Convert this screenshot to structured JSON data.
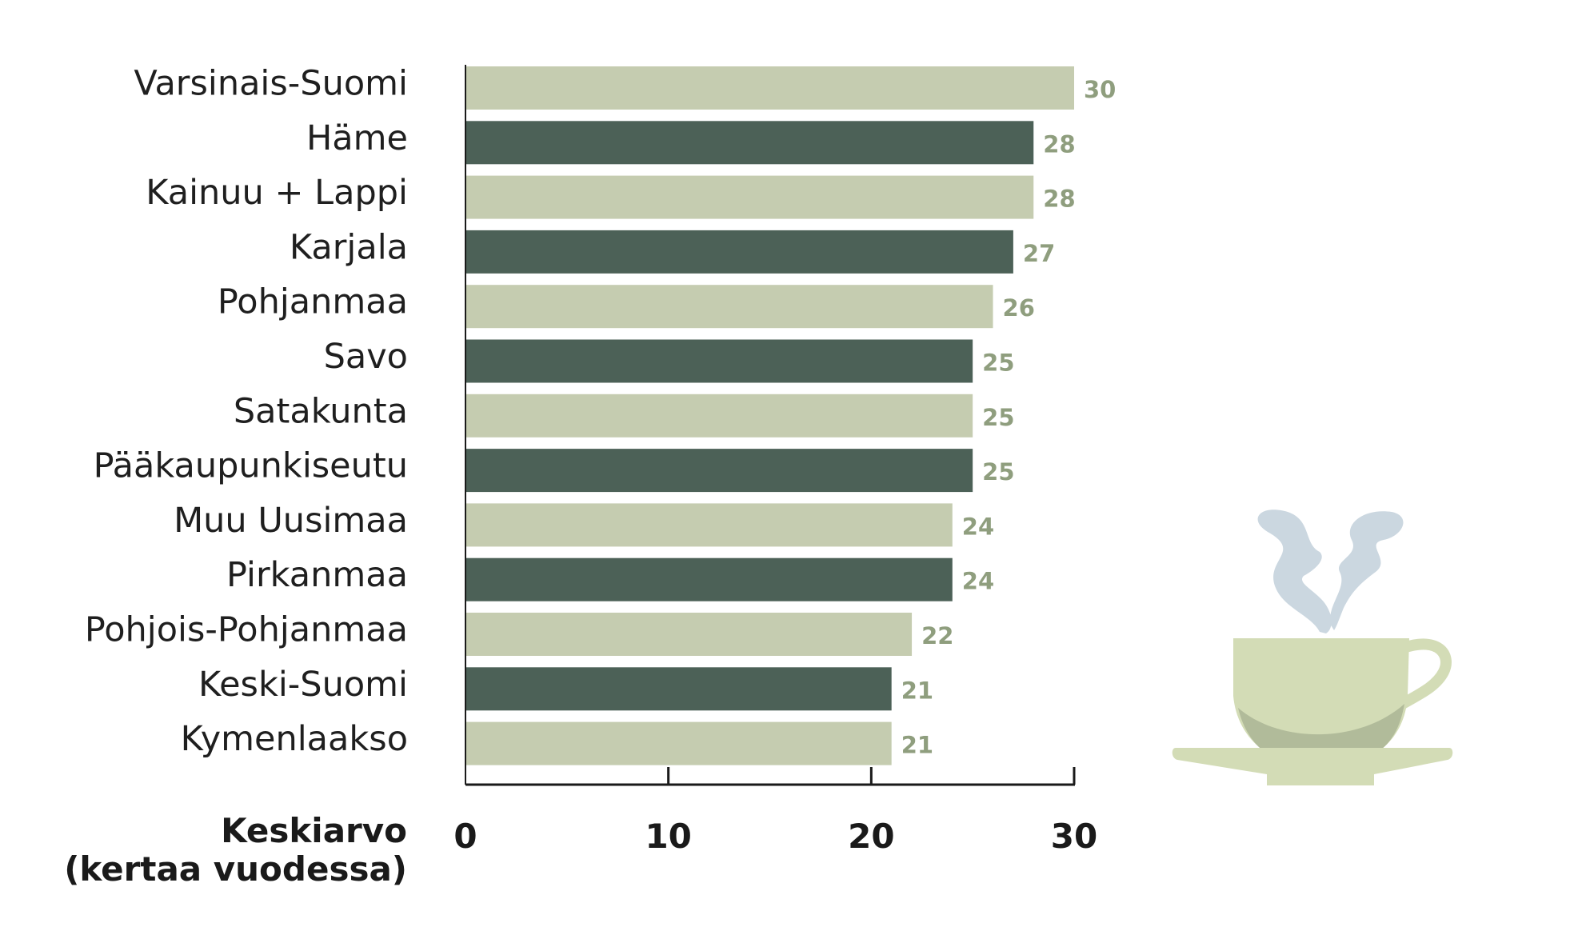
{
  "chart_data": {
    "type": "bar",
    "orientation": "horizontal",
    "categories": [
      "Varsinais-Suomi",
      "Häme",
      "Kainuu + Lappi",
      "Karjala",
      "Pohjanmaa",
      "Savo",
      "Satakunta",
      "Pääkaupunkiseutu",
      "Muu Uusimaa",
      "Pirkanmaa",
      "Pohjois-Pohjanmaa",
      "Keski-Suomi",
      "Kymenlaakso"
    ],
    "values": [
      30,
      28,
      28,
      27,
      26,
      25,
      25,
      25,
      24,
      24,
      22,
      21,
      21
    ],
    "xlabel": [
      "Keskiarvo",
      "(kertaa vuodessa)"
    ],
    "xlim": [
      0,
      30
    ],
    "xticks": [
      0,
      10,
      20,
      30
    ],
    "grid": false,
    "colors": {
      "bar_light": "#c5ccb0",
      "bar_dark": "#4c6157",
      "value_label": "#8f9e7e",
      "axis": "#1a1a1a"
    },
    "decoration": {
      "icon": "coffee-cup-icon",
      "cup_color": "#d3dcb6",
      "cup_shadow": "#b1bb9a",
      "steam_color": "#cbd7e0"
    }
  }
}
